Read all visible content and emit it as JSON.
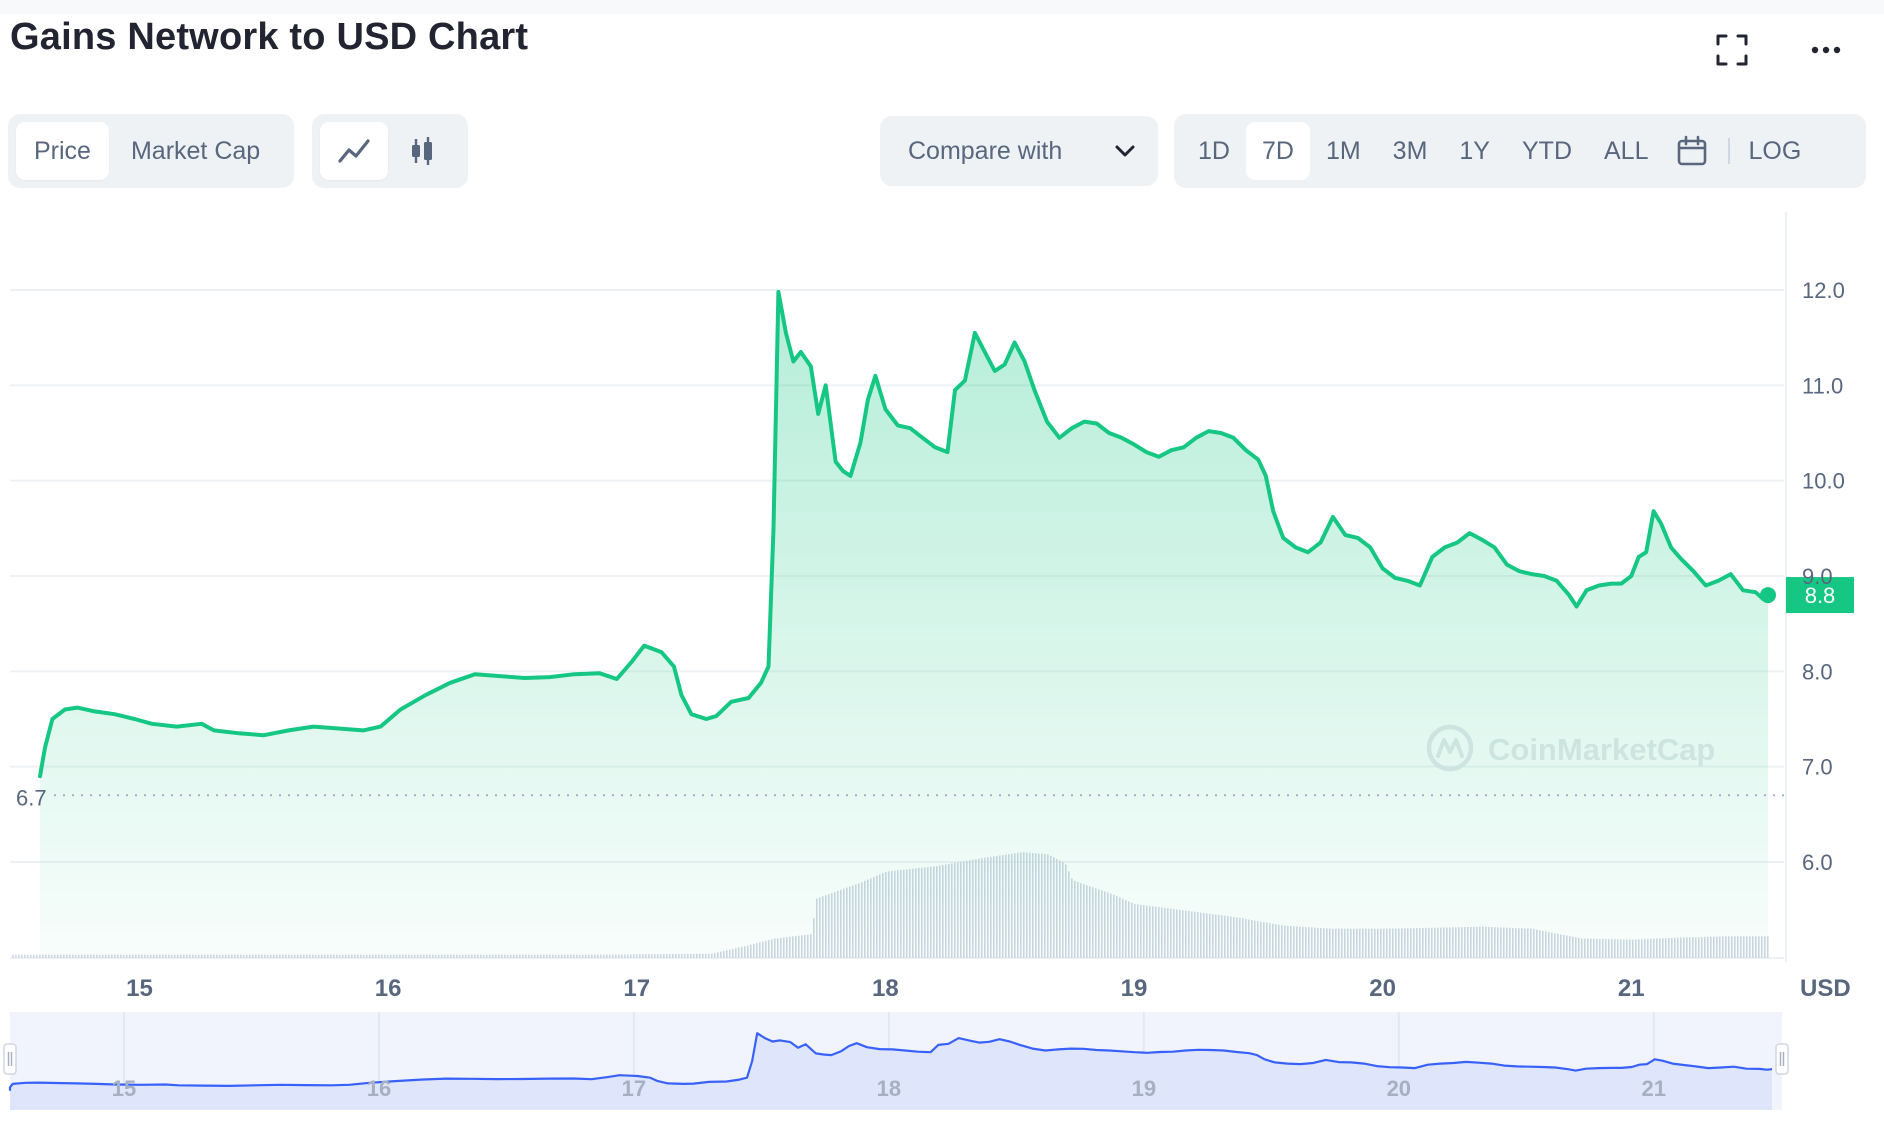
{
  "header": {
    "title": "Gains Network to USD Chart"
  },
  "view_toggle": {
    "price_label": "Price",
    "market_cap_label": "Market Cap",
    "active": "Price"
  },
  "chart_style": {
    "line_icon": "line-chart-icon",
    "candle_icon": "candlestick-icon",
    "active": "line"
  },
  "compare": {
    "label": "Compare with",
    "icon": "chevron-down-icon"
  },
  "ranges": [
    "1D",
    "7D",
    "1M",
    "3M",
    "1Y",
    "YTD",
    "ALL"
  ],
  "active_range": "7D",
  "log_label": "LOG",
  "icons": {
    "fullscreen": "fullscreen-icon",
    "more": "more-icon",
    "calendar": "calendar-icon"
  },
  "colors": {
    "line": "#16c784",
    "fill_top": "#16c784",
    "volume": "#cfd6e4",
    "navigator_line": "#3861fb",
    "navigator_fill": "#dfe5fb",
    "label_text": "#58667e"
  },
  "watermark": "CoinMarketCap",
  "chart_data": {
    "type": "area",
    "title": "Gains Network to USD Chart",
    "currency_label": "USD",
    "x_ticks": [
      "15",
      "16",
      "17",
      "18",
      "19",
      "20",
      "21"
    ],
    "y_ticks": [
      "12.0",
      "11.0",
      "10.0",
      "9.0",
      "8.0",
      "7.0",
      "6.0"
    ],
    "ylim": [
      5.0,
      12.8
    ],
    "grid": true,
    "current_price_label": "8.8",
    "min_price_label": "6.7",
    "x_range_days": [
      14.6,
      21.55
    ],
    "series": [
      {
        "points": [
          [
            14.6,
            6.9
          ],
          [
            14.62,
            7.2
          ],
          [
            14.65,
            7.5
          ],
          [
            14.7,
            7.6
          ],
          [
            14.75,
            7.62
          ],
          [
            14.82,
            7.58
          ],
          [
            14.9,
            7.55
          ],
          [
            14.98,
            7.5
          ],
          [
            15.05,
            7.45
          ],
          [
            15.15,
            7.42
          ],
          [
            15.25,
            7.45
          ],
          [
            15.3,
            7.38
          ],
          [
            15.4,
            7.35
          ],
          [
            15.5,
            7.33
          ],
          [
            15.6,
            7.38
          ],
          [
            15.7,
            7.42
          ],
          [
            15.8,
            7.4
          ],
          [
            15.9,
            7.38
          ],
          [
            15.97,
            7.42
          ],
          [
            16.05,
            7.6
          ],
          [
            16.15,
            7.75
          ],
          [
            16.25,
            7.88
          ],
          [
            16.35,
            7.97
          ],
          [
            16.45,
            7.95
          ],
          [
            16.55,
            7.93
          ],
          [
            16.65,
            7.94
          ],
          [
            16.75,
            7.97
          ],
          [
            16.85,
            7.98
          ],
          [
            16.92,
            7.92
          ],
          [
            16.98,
            8.1
          ],
          [
            17.03,
            8.27
          ],
          [
            17.1,
            8.2
          ],
          [
            17.15,
            8.05
          ],
          [
            17.18,
            7.75
          ],
          [
            17.22,
            7.55
          ],
          [
            17.28,
            7.5
          ],
          [
            17.32,
            7.53
          ],
          [
            17.38,
            7.68
          ],
          [
            17.45,
            7.72
          ],
          [
            17.5,
            7.88
          ],
          [
            17.53,
            8.05
          ],
          [
            17.55,
            9.5
          ],
          [
            17.57,
            11.98
          ],
          [
            17.6,
            11.55
          ],
          [
            17.63,
            11.25
          ],
          [
            17.66,
            11.35
          ],
          [
            17.7,
            11.2
          ],
          [
            17.73,
            10.7
          ],
          [
            17.76,
            11.0
          ],
          [
            17.8,
            10.2
          ],
          [
            17.83,
            10.1
          ],
          [
            17.86,
            10.05
          ],
          [
            17.9,
            10.4
          ],
          [
            17.93,
            10.85
          ],
          [
            17.96,
            11.1
          ],
          [
            18.0,
            10.75
          ],
          [
            18.05,
            10.58
          ],
          [
            18.1,
            10.55
          ],
          [
            18.15,
            10.45
          ],
          [
            18.2,
            10.35
          ],
          [
            18.25,
            10.3
          ],
          [
            18.28,
            10.95
          ],
          [
            18.32,
            11.05
          ],
          [
            18.36,
            11.55
          ],
          [
            18.4,
            11.35
          ],
          [
            18.44,
            11.15
          ],
          [
            18.48,
            11.22
          ],
          [
            18.52,
            11.45
          ],
          [
            18.56,
            11.25
          ],
          [
            18.6,
            10.95
          ],
          [
            18.65,
            10.62
          ],
          [
            18.7,
            10.45
          ],
          [
            18.75,
            10.55
          ],
          [
            18.8,
            10.62
          ],
          [
            18.85,
            10.6
          ],
          [
            18.9,
            10.5
          ],
          [
            18.95,
            10.45
          ],
          [
            19.0,
            10.38
          ],
          [
            19.05,
            10.3
          ],
          [
            19.1,
            10.25
          ],
          [
            19.15,
            10.32
          ],
          [
            19.2,
            10.35
          ],
          [
            19.25,
            10.45
          ],
          [
            19.3,
            10.52
          ],
          [
            19.35,
            10.5
          ],
          [
            19.4,
            10.45
          ],
          [
            19.45,
            10.32
          ],
          [
            19.5,
            10.22
          ],
          [
            19.53,
            10.05
          ],
          [
            19.56,
            9.68
          ],
          [
            19.6,
            9.4
          ],
          [
            19.65,
            9.3
          ],
          [
            19.7,
            9.25
          ],
          [
            19.75,
            9.35
          ],
          [
            19.8,
            9.62
          ],
          [
            19.85,
            9.43
          ],
          [
            19.9,
            9.4
          ],
          [
            19.95,
            9.3
          ],
          [
            20.0,
            9.08
          ],
          [
            20.05,
            8.98
          ],
          [
            20.1,
            8.95
          ],
          [
            20.15,
            8.9
          ],
          [
            20.2,
            9.2
          ],
          [
            20.25,
            9.3
          ],
          [
            20.3,
            9.35
          ],
          [
            20.35,
            9.45
          ],
          [
            20.4,
            9.38
          ],
          [
            20.45,
            9.3
          ],
          [
            20.5,
            9.12
          ],
          [
            20.55,
            9.05
          ],
          [
            20.6,
            9.02
          ],
          [
            20.65,
            9.0
          ],
          [
            20.7,
            8.95
          ],
          [
            20.75,
            8.8
          ],
          [
            20.78,
            8.68
          ],
          [
            20.82,
            8.85
          ],
          [
            20.87,
            8.9
          ],
          [
            20.92,
            8.92
          ],
          [
            20.96,
            8.92
          ],
          [
            21.0,
            9.0
          ],
          [
            21.03,
            9.2
          ],
          [
            21.06,
            9.25
          ],
          [
            21.09,
            9.68
          ],
          [
            21.12,
            9.55
          ],
          [
            21.16,
            9.3
          ],
          [
            21.2,
            9.18
          ],
          [
            21.25,
            9.05
          ],
          [
            21.3,
            8.9
          ],
          [
            21.35,
            8.95
          ],
          [
            21.4,
            9.02
          ],
          [
            21.45,
            8.85
          ],
          [
            21.5,
            8.83
          ],
          [
            21.53,
            8.76
          ],
          [
            21.55,
            8.8
          ]
        ]
      }
    ],
    "volume_profile": [
      [
        14.6,
        0.03
      ],
      [
        16.8,
        0.03
      ],
      [
        17.3,
        0.04
      ],
      [
        17.45,
        0.12
      ],
      [
        17.55,
        0.18
      ],
      [
        17.7,
        0.22
      ],
      [
        17.72,
        0.55
      ],
      [
        17.9,
        0.7
      ],
      [
        18.0,
        0.8
      ],
      [
        18.2,
        0.85
      ],
      [
        18.4,
        0.93
      ],
      [
        18.55,
        0.98
      ],
      [
        18.65,
        0.96
      ],
      [
        18.72,
        0.88
      ],
      [
        18.75,
        0.72
      ],
      [
        18.9,
        0.6
      ],
      [
        19.0,
        0.5
      ],
      [
        19.2,
        0.44
      ],
      [
        19.4,
        0.38
      ],
      [
        19.6,
        0.3
      ],
      [
        19.8,
        0.27
      ],
      [
        20.0,
        0.27
      ],
      [
        20.2,
        0.28
      ],
      [
        20.4,
        0.29
      ],
      [
        20.6,
        0.27
      ],
      [
        20.8,
        0.18
      ],
      [
        21.0,
        0.17
      ],
      [
        21.2,
        0.19
      ],
      [
        21.4,
        0.2
      ],
      [
        21.55,
        0.2
      ]
    ]
  }
}
